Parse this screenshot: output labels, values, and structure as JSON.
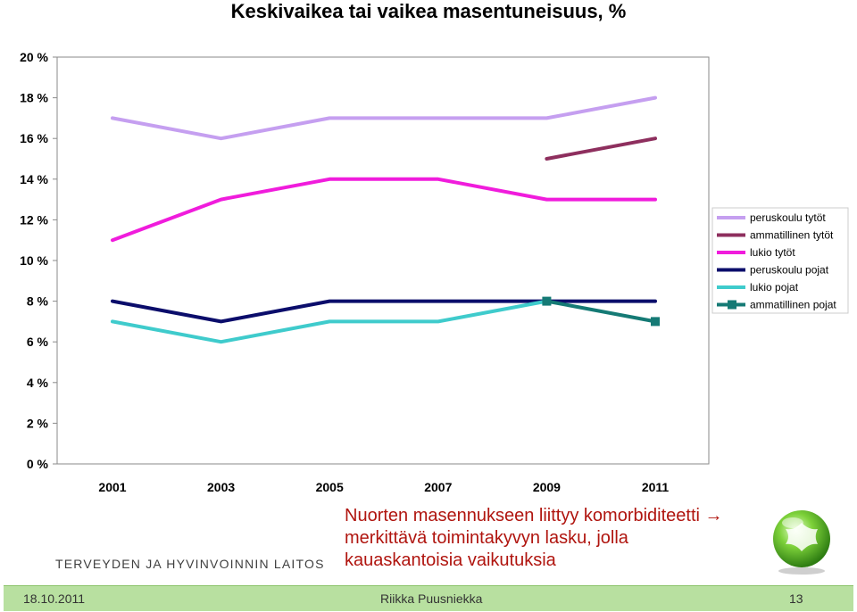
{
  "chart_data": {
    "type": "line",
    "title": "Keskivaikea tai vaikea masentuneisuus, %",
    "categories": [
      "2001",
      "2003",
      "2005",
      "2007",
      "2009",
      "2011"
    ],
    "ylim": [
      0,
      20
    ],
    "yticks": [
      "0 %",
      "2 %",
      "4 %",
      "6 %",
      "8 %",
      "10 %",
      "12 %",
      "14 %",
      "16 %",
      "18 %",
      "20 %"
    ],
    "grid": false,
    "legend_position": "right",
    "series": [
      {
        "name": "peruskoulu tytöt",
        "color": "#c59ff0",
        "marker": "none",
        "values": [
          17,
          16,
          17,
          17,
          17,
          18
        ]
      },
      {
        "name": "ammatillinen tytöt",
        "color": "#8e2f5e",
        "marker": "none",
        "values": [
          null,
          null,
          null,
          null,
          15,
          16
        ]
      },
      {
        "name": "lukio tytöt",
        "color": "#f01cdc",
        "marker": "none",
        "values": [
          11,
          13,
          14,
          14,
          13,
          13
        ]
      },
      {
        "name": "peruskoulu pojat",
        "color": "#0b0d6b",
        "marker": "none",
        "values": [
          8,
          7,
          8,
          8,
          8,
          8
        ]
      },
      {
        "name": "lukio pojat",
        "color": "#3fcbcc",
        "marker": "none",
        "values": [
          7,
          6,
          7,
          7,
          8,
          null
        ]
      },
      {
        "name": "ammatillinen pojat",
        "color": "#157a75",
        "marker": "square",
        "values": [
          null,
          null,
          null,
          null,
          8,
          7
        ]
      }
    ]
  },
  "note_lines": [
    "Nuorten masennukseen liittyy komorbiditeetti →",
    "merkittävä toimintakyvyn lasku, jolla",
    "kauaskantoisia vaikutuksia"
  ],
  "organization": "TERVEYDEN JA HYVINVOINNIN LAITOS",
  "footer": {
    "date": "18.10.2011",
    "author": "Riikka Puusniekka",
    "page": "13"
  }
}
